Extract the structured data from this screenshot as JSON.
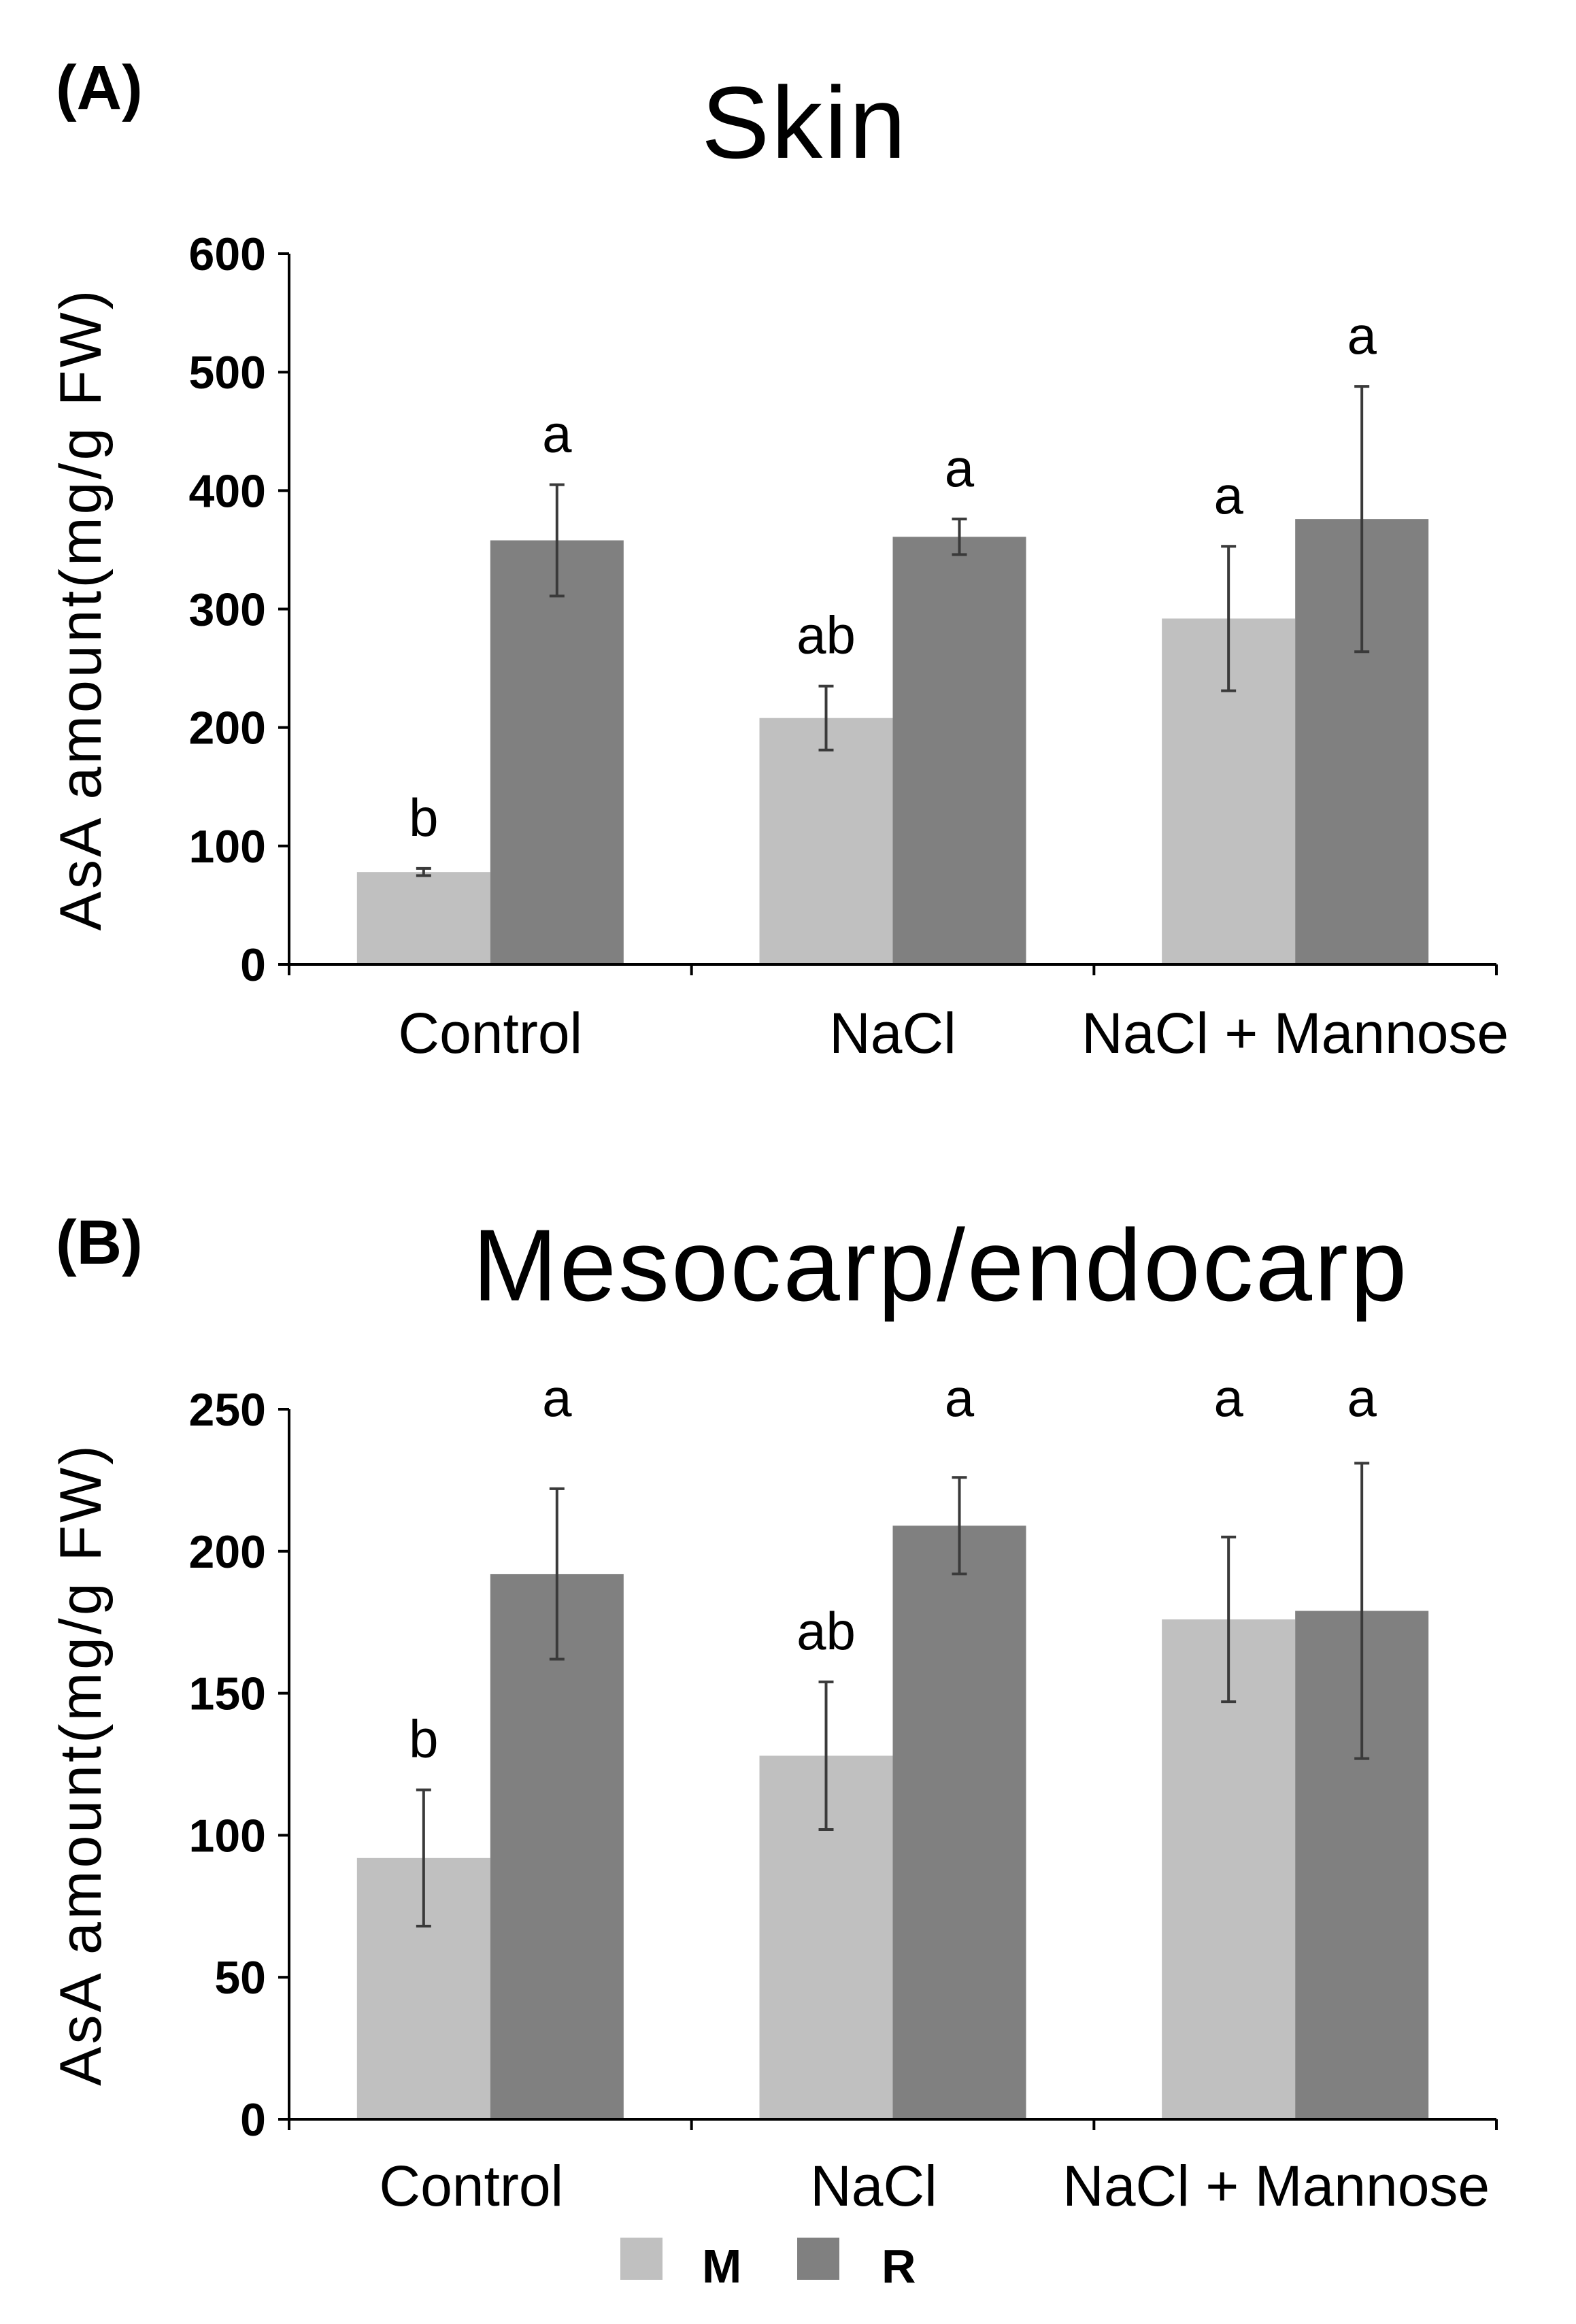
{
  "legend": {
    "items": [
      {
        "key": "M",
        "label": "M",
        "color": "#c0c0c0"
      },
      {
        "key": "R",
        "label": "R",
        "color": "#808080"
      }
    ]
  },
  "chart_data": [
    {
      "type": "bar",
      "panel_label": "(A)",
      "title": "Skin",
      "xlabel": "",
      "ylabel": "AsA amount(mg/g FW)",
      "ylim": [
        0,
        600
      ],
      "yticks": [
        0,
        100,
        200,
        300,
        400,
        500,
        600
      ],
      "categories": [
        "Control",
        "NaCl",
        "NaCl + Mannose"
      ],
      "series": [
        {
          "name": "M",
          "color": "#c0c0c0",
          "values": [
            78,
            208,
            292
          ],
          "errors": [
            3,
            27,
            61
          ],
          "letters": [
            "b",
            "ab",
            "a"
          ]
        },
        {
          "name": "R",
          "color": "#808080",
          "values": [
            358,
            361,
            376
          ],
          "errors": [
            47,
            15,
            112
          ],
          "letters": [
            "a",
            "a",
            "a"
          ]
        }
      ]
    },
    {
      "type": "bar",
      "panel_label": "(B)",
      "title": "Mesocarp/endocarp",
      "xlabel": "",
      "ylabel": "AsA amount(mg/g FW)",
      "ylim": [
        0,
        250
      ],
      "yticks": [
        0,
        50,
        100,
        150,
        200,
        250
      ],
      "categories": [
        "Control",
        "NaCl",
        "NaCl + Mannose"
      ],
      "series": [
        {
          "name": "M",
          "color": "#c0c0c0",
          "values": [
            92,
            128,
            176
          ],
          "errors": [
            24,
            26,
            29
          ],
          "letters": [
            "b",
            "ab",
            "a"
          ]
        },
        {
          "name": "R",
          "color": "#808080",
          "values": [
            192,
            209,
            179
          ],
          "errors": [
            30,
            17,
            52
          ],
          "letters": [
            "a",
            "a",
            "a"
          ]
        }
      ]
    }
  ]
}
